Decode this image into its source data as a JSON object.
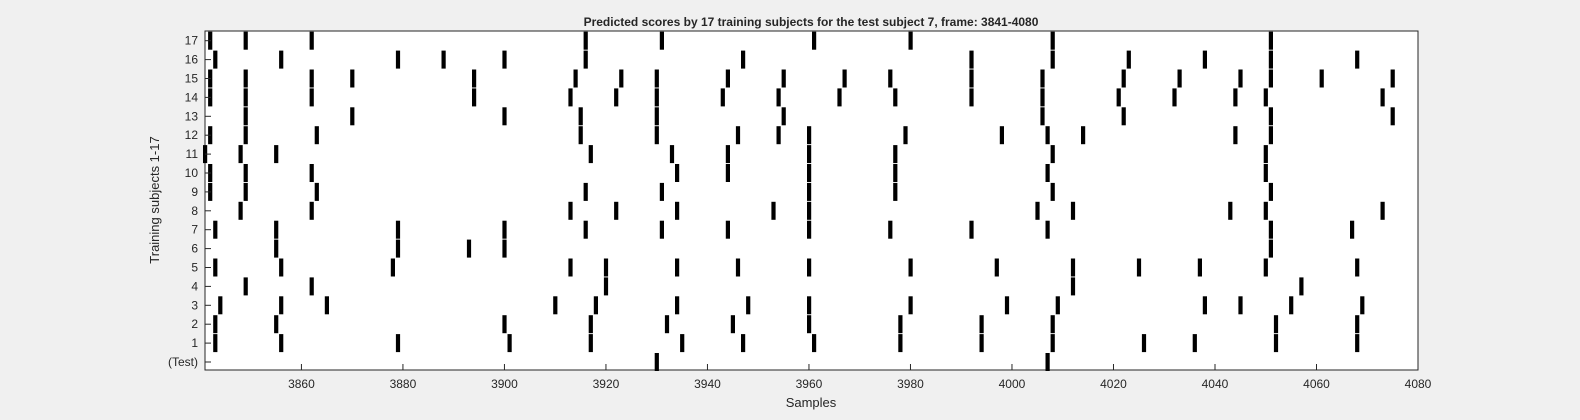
{
  "chart_data": {
    "type": "scatter",
    "title": "Predicted scores by 17 training subjects for the test subject 7, frame: 3841-4080",
    "xlabel": "Samples",
    "ylabel": "Training subjects 1-17",
    "xlim": [
      3841,
      4080
    ],
    "x_ticks": [
      "3860",
      "3880",
      "3900",
      "3920",
      "3940",
      "3960",
      "3980",
      "4000",
      "4020",
      "4040",
      "4060",
      "4080"
    ],
    "y_tick_labels": [
      "(Test)",
      "1",
      "2",
      "3",
      "4",
      "5",
      "6",
      "7",
      "8",
      "9",
      "10",
      "11",
      "12",
      "13",
      "14",
      "15",
      "16",
      "17"
    ],
    "grid": false,
    "mark_color": "#000000",
    "background_color": "#ffffff",
    "series": [
      {
        "values": [
          3930,
          4007
        ]
      },
      {
        "values": [
          3843,
          3856,
          3879,
          3901,
          3917,
          3935,
          3947,
          3961,
          3978,
          3994,
          4008,
          4026,
          4036,
          4052,
          4068
        ]
      },
      {
        "values": [
          3843,
          3855,
          3900,
          3917,
          3932,
          3945,
          3960,
          3978,
          3994,
          4008,
          4052,
          4068
        ]
      },
      {
        "values": [
          3844,
          3856,
          3865,
          3910,
          3918,
          3934,
          3948,
          3960,
          3980,
          3999,
          4009,
          4038,
          4045,
          4055,
          4069
        ]
      },
      {
        "values": [
          3849,
          3862,
          3920,
          4012,
          4057
        ]
      },
      {
        "values": [
          3843,
          3856,
          3878,
          3913,
          3920,
          3934,
          3946,
          3960,
          3980,
          3997,
          4012,
          4025,
          4037,
          4050,
          4068
        ]
      },
      {
        "values": [
          3855,
          3879,
          3893,
          3900,
          4051
        ]
      },
      {
        "values": [
          3843,
          3855,
          3879,
          3900,
          3916,
          3931,
          3944,
          3960,
          3976,
          3992,
          4007,
          4051,
          4067
        ]
      },
      {
        "values": [
          3848,
          3862,
          3913,
          3922,
          3934,
          3953,
          3960,
          4005,
          4012,
          4043,
          4050,
          4073
        ]
      },
      {
        "values": [
          3842,
          3849,
          3863,
          3916,
          3931,
          3960,
          3977,
          4008,
          4051
        ]
      },
      {
        "values": [
          3842,
          3849,
          3862,
          3934,
          3944,
          3960,
          3977,
          4007,
          4050
        ]
      },
      {
        "values": [
          3841,
          3848,
          3855,
          3917,
          3933,
          3944,
          3960,
          3977,
          4008,
          4050
        ]
      },
      {
        "values": [
          3842,
          3849,
          3863,
          3915,
          3930,
          3946,
          3954,
          3960,
          3979,
          3998,
          4007,
          4014,
          4044,
          4051
        ]
      },
      {
        "values": [
          3849,
          3870,
          3900,
          3915,
          3930,
          3955,
          4006,
          4022,
          4051,
          4075
        ]
      },
      {
        "values": [
          3842,
          3849,
          3862,
          3894,
          3913,
          3922,
          3930,
          3943,
          3954,
          3966,
          3977,
          3992,
          4006,
          4021,
          4032,
          4044,
          4050,
          4073
        ]
      },
      {
        "values": [
          3842,
          3849,
          3862,
          3870,
          3894,
          3914,
          3923,
          3930,
          3944,
          3955,
          3967,
          3976,
          3992,
          4006,
          4022,
          4033,
          4045,
          4051,
          4061,
          4075
        ]
      },
      {
        "values": [
          3843,
          3856,
          3879,
          3888,
          3900,
          3916,
          3947,
          3992,
          4008,
          4023,
          4038,
          4051,
          4068
        ]
      },
      {
        "values": [
          3842,
          3849,
          3862,
          3916,
          3931,
          3961,
          3980,
          4008,
          4051
        ]
      }
    ]
  }
}
